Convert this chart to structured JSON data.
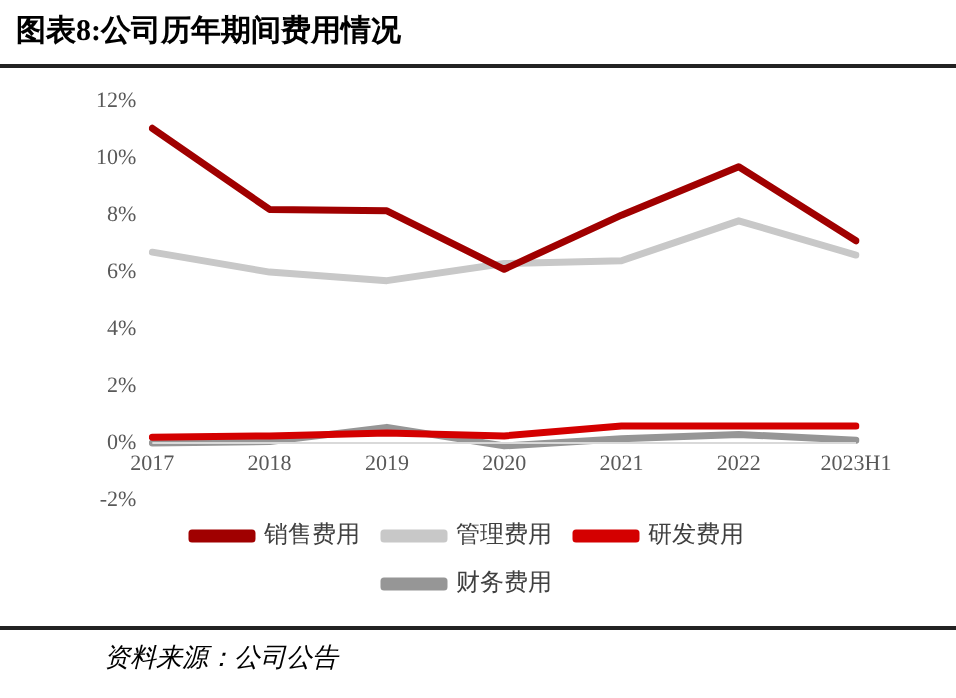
{
  "chart_data": {
    "type": "line",
    "title": "图表8:公司历年期间费用情况",
    "categories": [
      "2017",
      "2018",
      "2019",
      "2020",
      "2021",
      "2022",
      "2023H1"
    ],
    "series": [
      {
        "name": "销售费用",
        "color": "#a00000",
        "values": [
          11.05,
          8.2,
          8.15,
          6.1,
          8.0,
          9.7,
          7.1
        ]
      },
      {
        "name": "管理费用",
        "color": "#c8c8c8",
        "values": [
          6.7,
          6.0,
          5.7,
          6.3,
          6.4,
          7.8,
          6.6
        ]
      },
      {
        "name": "研发费用",
        "color": "#d40000",
        "values": [
          0.2,
          0.25,
          0.35,
          0.25,
          0.6,
          0.6,
          0.6
        ]
      },
      {
        "name": "财务费用",
        "color": "#969696",
        "values": [
          0.0,
          0.05,
          0.55,
          -0.1,
          0.15,
          0.3,
          0.1
        ]
      }
    ],
    "ylim": [
      -2,
      12
    ],
    "yticks": [
      {
        "value": -2,
        "label": "-2%"
      },
      {
        "value": 0,
        "label": "0%"
      },
      {
        "value": 2,
        "label": "2%"
      },
      {
        "value": 4,
        "label": "4%"
      },
      {
        "value": 6,
        "label": "6%"
      },
      {
        "value": 8,
        "label": "8%"
      },
      {
        "value": 10,
        "label": "10%"
      },
      {
        "value": 12,
        "label": "12%"
      }
    ],
    "grid": false,
    "legend": "bottom",
    "marker": "none",
    "line_style": "solid",
    "annotations": [
      "资料来源：公司公告"
    ]
  }
}
